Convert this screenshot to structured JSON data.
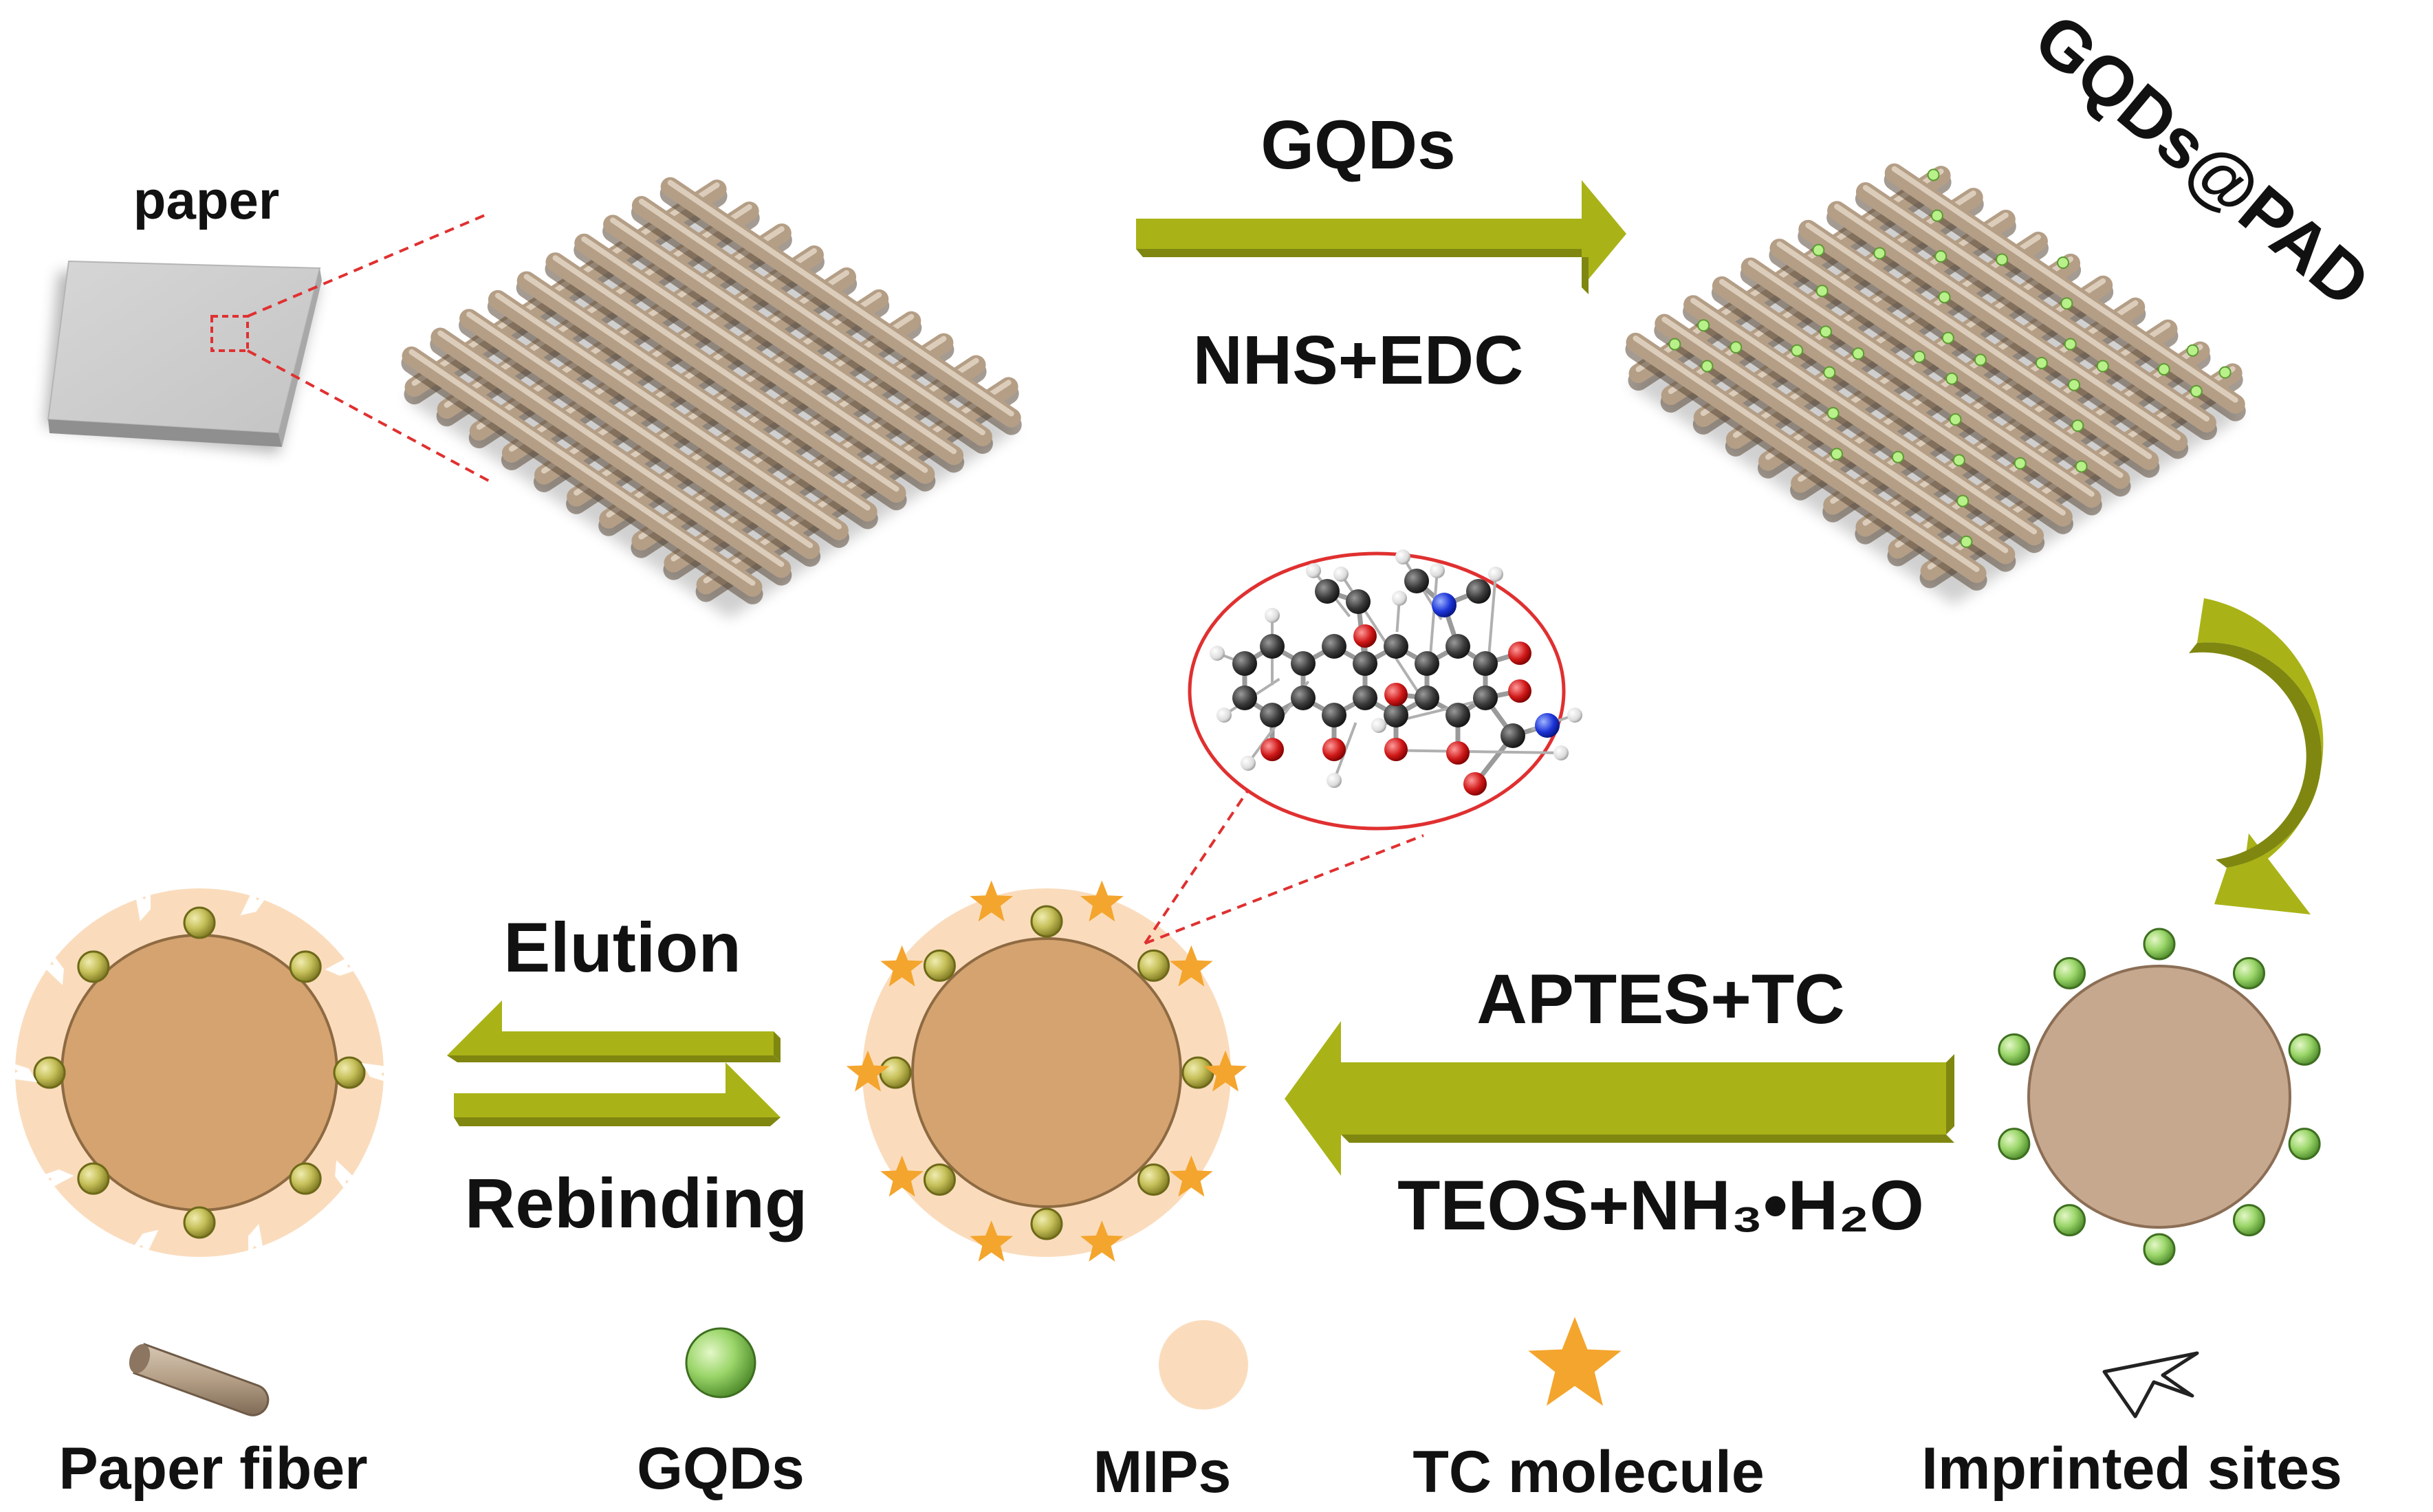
{
  "labels": {
    "paper": "paper",
    "gqds_top": "GQDs",
    "nhs_edc": "NHS+EDC",
    "gqds_pad": "GQDs@PAD",
    "elution": "Elution",
    "rebinding": "Rebinding",
    "aptes_tc": "APTES+TC",
    "teos": "TEOS+NH₃•H₂O"
  },
  "legend": [
    {
      "label": "Paper fiber",
      "icon": "paper-fiber-icon"
    },
    {
      "label": "GQDs",
      "icon": "gqd-sphere-icon"
    },
    {
      "label": "MIPs",
      "icon": "mip-circle-icon"
    },
    {
      "label": "TC molecule",
      "icon": "star-icon"
    },
    {
      "label": "Imprinted sites",
      "icon": "imprinted-site-icon"
    }
  ],
  "colors": {
    "fiber": "#b49e86",
    "arrow": "#a9b317",
    "gqd": "#8fcf5a",
    "mip": "#f8d5b4",
    "core": "#d4a370",
    "core_plain": "#c5a88e",
    "star": "#f4a52d",
    "dashed": "#e03030"
  }
}
